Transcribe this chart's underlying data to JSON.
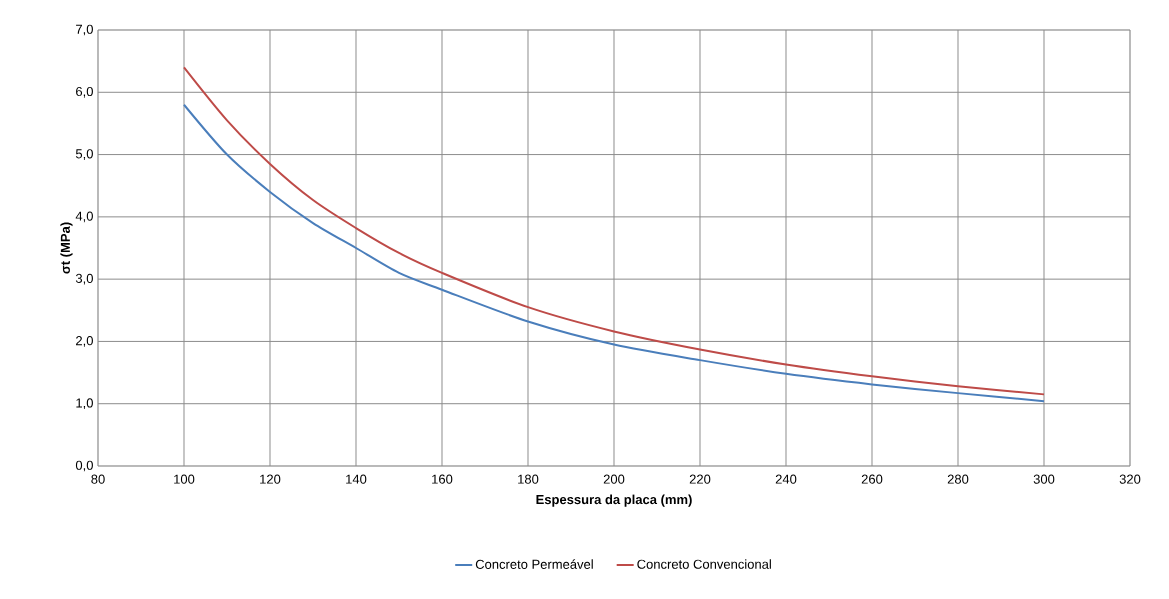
{
  "chart_data": {
    "type": "line",
    "xlabel": "Espessura da placa (mm)",
    "ylabel": "σt (MPa)",
    "x": [
      100,
      110,
      120,
      130,
      140,
      150,
      160,
      180,
      200,
      220,
      240,
      260,
      280,
      300
    ],
    "series": [
      {
        "name": "Concreto Permeável",
        "color": "#4a7ebb",
        "values": [
          5.8,
          5.0,
          4.4,
          3.9,
          3.5,
          3.1,
          2.83,
          2.32,
          1.95,
          1.7,
          1.48,
          1.31,
          1.17,
          1.04
        ]
      },
      {
        "name": "Concreto Convencional",
        "color": "#be4b48",
        "values": [
          6.4,
          5.55,
          4.85,
          4.27,
          3.82,
          3.42,
          3.1,
          2.55,
          2.16,
          1.87,
          1.63,
          1.44,
          1.28,
          1.15
        ]
      }
    ],
    "xlim": [
      80,
      320
    ],
    "ylim": [
      0,
      7
    ],
    "xticks": [
      80,
      100,
      120,
      140,
      160,
      180,
      200,
      220,
      240,
      260,
      280,
      300,
      320
    ],
    "yticks": [
      {
        "value": 0,
        "label": "0,0"
      },
      {
        "value": 1,
        "label": "1,0"
      },
      {
        "value": 2,
        "label": "2,0"
      },
      {
        "value": 3,
        "label": "3,0"
      },
      {
        "value": 4,
        "label": "4,0"
      },
      {
        "value": 5,
        "label": "5,0"
      },
      {
        "value": 6,
        "label": "6,0"
      },
      {
        "value": 7,
        "label": "7,0"
      }
    ],
    "grid": true,
    "legend": "bottom",
    "marker": "none",
    "line_style": "solid"
  }
}
